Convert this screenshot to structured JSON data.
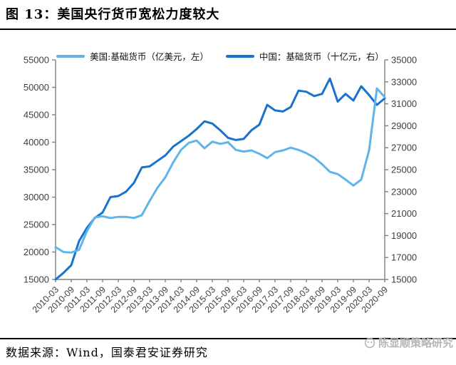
{
  "header": {
    "title": "图 13：美国央行货币宽松力度较大"
  },
  "legend": [
    {
      "label": "美国:基础货币（亿美元，左）",
      "color": "#5FB4E9"
    },
    {
      "label": "中国：基础货币（十亿元，右）",
      "color": "#1873CE"
    }
  ],
  "chart_data": {
    "type": "line",
    "title": "美国央行货币宽松力度较大",
    "x": [
      "2010-03",
      "2010-06",
      "2010-09",
      "2010-12",
      "2011-03",
      "2011-06",
      "2011-09",
      "2011-12",
      "2012-03",
      "2012-06",
      "2012-09",
      "2012-12",
      "2013-03",
      "2013-06",
      "2013-09",
      "2013-12",
      "2014-03",
      "2014-06",
      "2014-09",
      "2014-12",
      "2015-03",
      "2015-06",
      "2015-09",
      "2015-12",
      "2016-03",
      "2016-06",
      "2016-09",
      "2016-12",
      "2017-03",
      "2017-06",
      "2017-09",
      "2017-12",
      "2018-03",
      "2018-06",
      "2018-09",
      "2018-12",
      "2019-03",
      "2019-06",
      "2019-09",
      "2019-12",
      "2020-03",
      "2020-06",
      "2020-09"
    ],
    "x_tick_label_every": 2,
    "series": [
      {
        "name": "美国:基础货币（亿美元，左）",
        "axis": "left",
        "color": "#5FB4E9",
        "values": [
          20900,
          20000,
          19900,
          20400,
          23800,
          26300,
          26500,
          26200,
          26400,
          26400,
          26200,
          26700,
          29300,
          31700,
          33600,
          36300,
          38600,
          39900,
          40300,
          38900,
          40100,
          39700,
          40000,
          38600,
          38300,
          38500,
          37900,
          37100,
          38200,
          38500,
          39000,
          38600,
          38000,
          37200,
          36000,
          34600,
          34200,
          33200,
          32100,
          33200,
          38500,
          49800,
          48200
        ]
      },
      {
        "name": "中国：基础货币（十亿元，右）",
        "axis": "right",
        "color": "#1873CE",
        "values": [
          15000,
          15600,
          16300,
          18500,
          19700,
          20600,
          21100,
          22500,
          22600,
          23000,
          23800,
          25200,
          25300,
          25800,
          26300,
          27100,
          27600,
          28100,
          28700,
          29400,
          29200,
          28600,
          27900,
          27700,
          27800,
          28600,
          29100,
          30900,
          30400,
          30300,
          30700,
          32200,
          32100,
          31700,
          31900,
          33300,
          31200,
          31900,
          31300,
          32600,
          31800,
          30900,
          31500
        ]
      }
    ],
    "left_axis": {
      "min": 15000,
      "max": 55000,
      "step": 5000,
      "ticks": [
        15000,
        20000,
        25000,
        30000,
        35000,
        40000,
        45000,
        50000,
        55000
      ]
    },
    "right_axis": {
      "min": 15000,
      "max": 35000,
      "step": 2000,
      "ticks": [
        15000,
        17000,
        19000,
        21000,
        23000,
        25000,
        27000,
        29000,
        31000,
        33000,
        35000
      ]
    },
    "grid": false,
    "legend_position": "top"
  },
  "footer": {
    "source": "数据来源：Wind，国泰君安证券研究"
  },
  "watermark": {
    "text": "陈显顺策略研究",
    "icon": "circle-logo"
  },
  "colors": {
    "axis": "#7f7f7f",
    "tick_text": "#404040",
    "rule": "#000000",
    "watermark": "#b5b5b5"
  }
}
